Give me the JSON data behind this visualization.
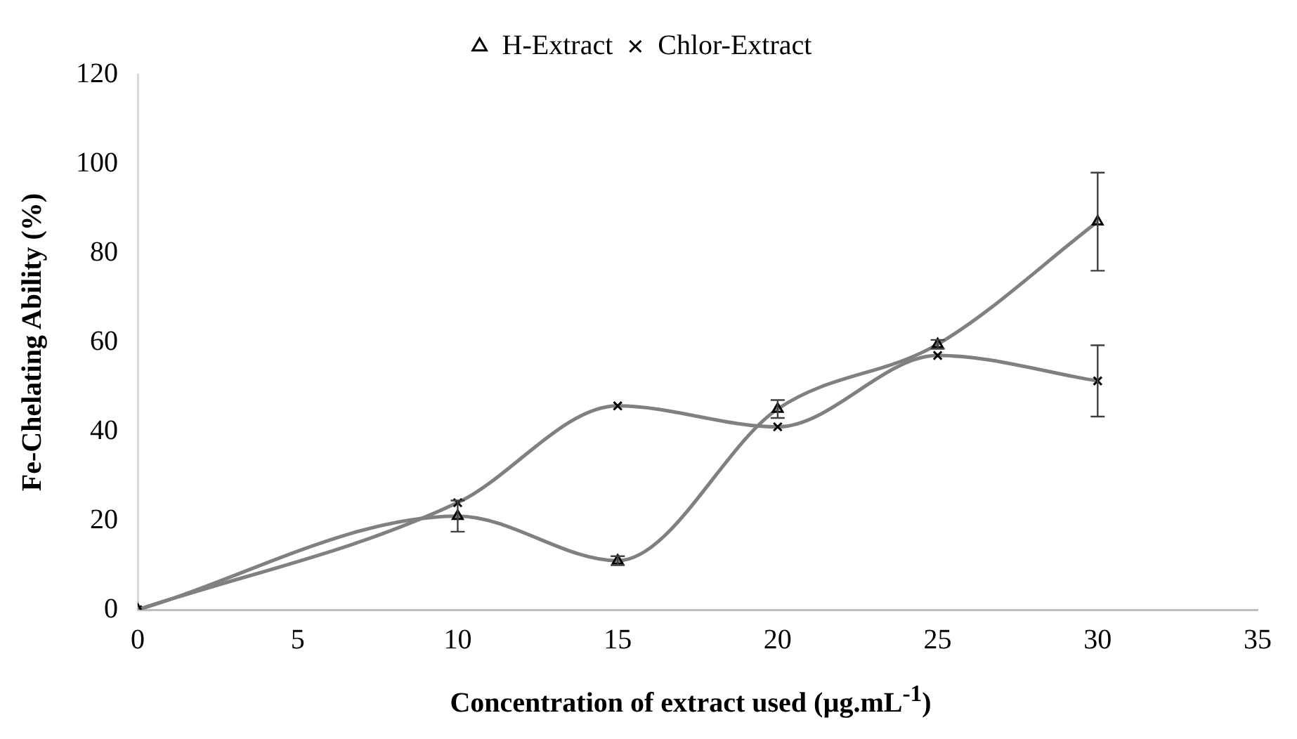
{
  "chart_data": {
    "type": "line",
    "xlabel": "Concentration of extract used (µg.mL$^{-1}$)",
    "ylabel": "Fe-Chelating Ability (%)",
    "x": [
      0,
      10,
      15,
      20,
      25,
      30
    ],
    "series": [
      {
        "name": "H-Extract",
        "color": "#808080",
        "marker": "triangle",
        "values": [
          0,
          21,
          11,
          45,
          59.5,
          87
        ],
        "errors": [
          null,
          3.5,
          1,
          2,
          1,
          11
        ]
      },
      {
        "name": "Chlor-Extract",
        "color": "#808080",
        "marker": "cross",
        "values": [
          0,
          24,
          45.7,
          41,
          57,
          51.3
        ],
        "errors": [
          null,
          null,
          null,
          null,
          null,
          8
        ]
      }
    ],
    "xlim": [
      0,
      35
    ],
    "xticks": [
      0,
      5,
      10,
      15,
      20,
      25,
      30,
      35
    ],
    "ylim": [
      0,
      120
    ],
    "yticks": [
      0,
      20,
      40,
      60,
      80,
      100,
      120
    ],
    "grid": false,
    "legend": "top",
    "line_style": "solid"
  }
}
